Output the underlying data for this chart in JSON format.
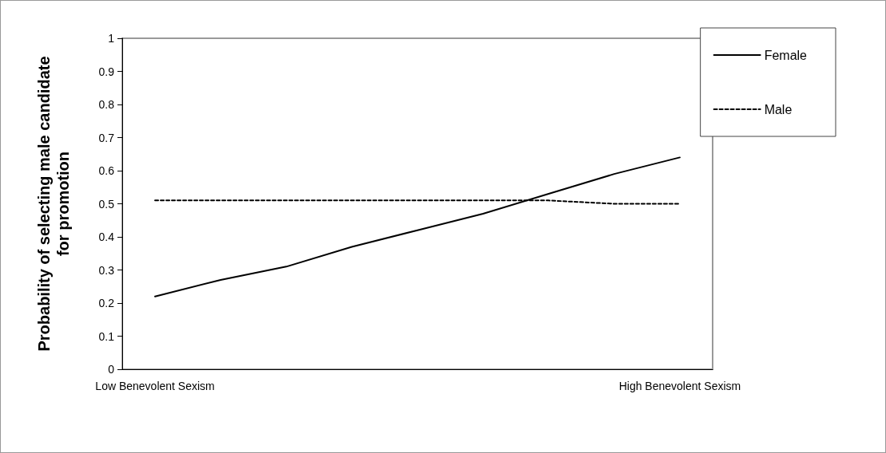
{
  "chart_data": {
    "type": "line",
    "ylabel": "Probability of selecting male candidate for promotion",
    "categories": [
      "Low Benevolent Sexism",
      null,
      null,
      null,
      null,
      null,
      null,
      null,
      "High Benevolent Sexism"
    ],
    "series": [
      {
        "name": "Female",
        "color": "#000000",
        "line_style": "solid",
        "values": [
          0.22,
          0.27,
          0.31,
          0.37,
          0.42,
          0.47,
          0.53,
          0.59,
          0.64
        ]
      },
      {
        "name": "Male",
        "color": "#000000",
        "line_style": "dashed",
        "values": [
          0.51,
          0.51,
          0.51,
          0.51,
          0.51,
          0.51,
          0.51,
          0.5,
          0.5
        ]
      }
    ],
    "ylim": [
      0,
      1
    ],
    "yticks": [
      0,
      0.1,
      0.2,
      0.3,
      0.4,
      0.5,
      0.6,
      0.7,
      0.8,
      0.9,
      1
    ],
    "grid": false,
    "legend": "top right",
    "marker": "none"
  }
}
